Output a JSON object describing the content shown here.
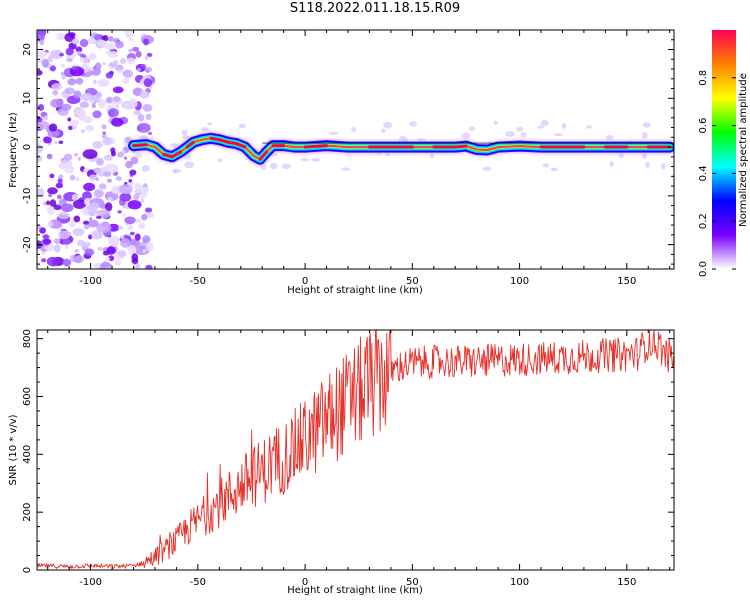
{
  "title": "S118.2022.011.18.15.R09",
  "chart_data": [
    {
      "type": "heatmap",
      "xlabel": "Height of straight line (km)",
      "ylabel": "Frequency (Hz)",
      "xlim": [
        -125,
        172
      ],
      "ylim": [
        -25,
        24
      ],
      "x_ticks": [
        -100,
        -50,
        0,
        50,
        100,
        150
      ],
      "y_ticks": [
        -20,
        -10,
        0,
        10,
        20
      ],
      "colorbar": {
        "label": "Normalized spectral amplitude",
        "range": [
          0,
          1
        ],
        "ticks": [
          0.0,
          0.2,
          0.4,
          0.6,
          0.8
        ],
        "colormap": [
          "#ffffff",
          "#7a00ff",
          "#0000ff",
          "#00ffff",
          "#00ff00",
          "#ffff00",
          "#ff7f00",
          "#ff0055"
        ]
      },
      "trace": {
        "x": [
          -80,
          -74,
          -70,
          -66,
          -62,
          -58,
          -55,
          -52,
          -48,
          -44,
          -40,
          -36,
          -32,
          -28,
          -24,
          -21,
          -18,
          -15,
          -10,
          -5,
          0,
          10,
          20,
          30,
          40,
          50,
          60,
          70,
          75,
          80,
          85,
          90,
          100,
          110,
          120,
          130,
          140,
          150,
          160,
          170
        ],
        "y": [
          0.3,
          0.5,
          0,
          -1.5,
          -2,
          -1,
          0,
          1,
          1.5,
          1.8,
          1.5,
          1,
          0.7,
          0,
          -1.8,
          -2.5,
          -1,
          0.3,
          0.3,
          0,
          0,
          0.3,
          0,
          0,
          0,
          0,
          0,
          0,
          0.2,
          -0.5,
          -0.6,
          0,
          0.2,
          0,
          0,
          0,
          0,
          0,
          0,
          0
        ]
      },
      "noise_region_x": [
        -125,
        -80
      ]
    },
    {
      "type": "line",
      "xlabel": "Height of straight line (km)",
      "ylabel": "SNR (10 * v/v)",
      "xlim": [
        -125,
        172
      ],
      "ylim": [
        0,
        830
      ],
      "x_ticks": [
        -100,
        -50,
        0,
        50,
        100,
        150
      ],
      "y_ticks": [
        0,
        200,
        400,
        600,
        800
      ],
      "series": [
        {
          "name": "SNR",
          "color": "#e8302a",
          "x": [
            -125,
            -110,
            -100,
            -90,
            -80,
            -75,
            -70,
            -65,
            -60,
            -55,
            -50,
            -45,
            -40,
            -35,
            -30,
            -25,
            -20,
            -15,
            -10,
            -5,
            0,
            5,
            10,
            15,
            20,
            25,
            30,
            35,
            40,
            45,
            50,
            60,
            70,
            80,
            90,
            100,
            110,
            120,
            130,
            140,
            150,
            155,
            160,
            165,
            168,
            172
          ],
          "y": [
            15,
            12,
            15,
            12,
            15,
            25,
            45,
            70,
            100,
            140,
            170,
            200,
            230,
            260,
            290,
            320,
            340,
            370,
            390,
            420,
            450,
            480,
            520,
            550,
            580,
            610,
            640,
            665,
            690,
            705,
            715,
            720,
            720,
            722,
            725,
            728,
            730,
            735,
            738,
            742,
            745,
            750,
            790,
            780,
            745,
            735
          ]
        }
      ]
    }
  ]
}
